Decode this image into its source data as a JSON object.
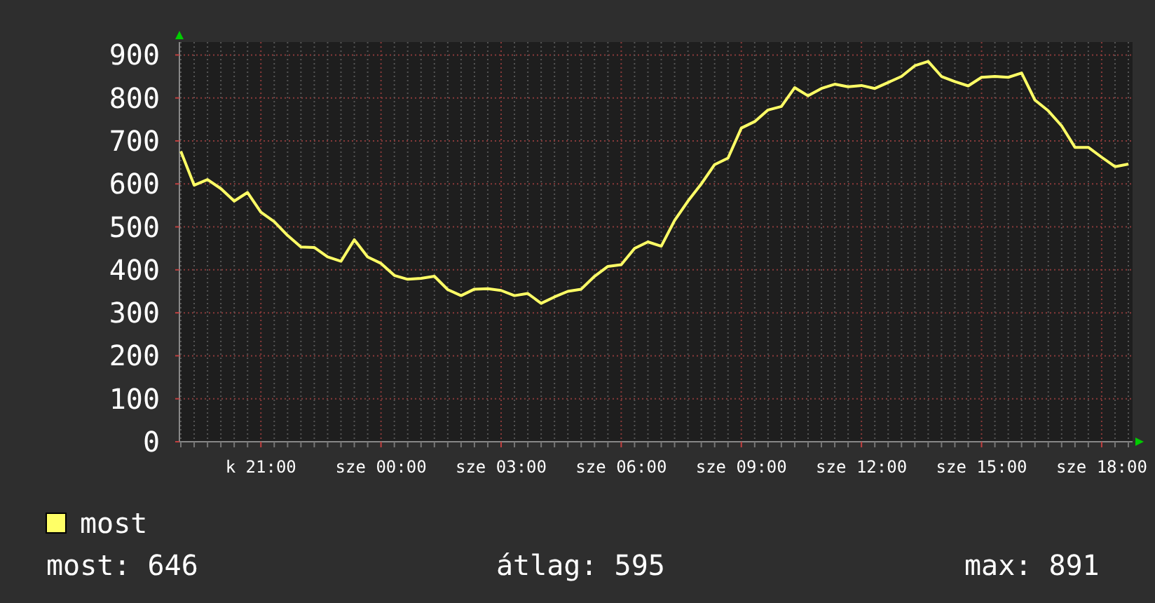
{
  "chart_data": {
    "type": "line",
    "categories": [
      null,
      null,
      null,
      null,
      null,
      null,
      "k 21:00",
      null,
      null,
      null,
      null,
      null,
      null,
      null,
      null,
      "sze 00:00",
      null,
      null,
      null,
      null,
      null,
      null,
      null,
      null,
      "sze 03:00",
      null,
      null,
      null,
      null,
      null,
      null,
      null,
      null,
      "sze 06:00",
      null,
      null,
      null,
      null,
      null,
      null,
      null,
      null,
      "sze 09:00",
      null,
      null,
      null,
      null,
      null,
      null,
      null,
      null,
      "sze 12:00",
      null,
      null,
      null,
      null,
      null,
      null,
      null,
      null,
      "sze 15:00",
      null,
      null,
      null,
      null,
      null,
      null,
      null,
      null,
      "sze 18:00",
      null,
      null
    ],
    "series": [
      {
        "name": "most",
        "color": "#ffff66",
        "values": [
          676,
          597,
          610,
          589,
          560,
          580,
          534,
          512,
          480,
          453,
          452,
          430,
          420,
          470,
          430,
          415,
          387,
          378,
          380,
          385,
          354,
          340,
          355,
          356,
          352,
          340,
          345,
          322,
          337,
          350,
          355,
          385,
          408,
          412,
          450,
          465,
          455,
          515,
          560,
          600,
          645,
          660,
          730,
          745,
          772,
          780,
          824,
          805,
          822,
          832,
          826,
          829,
          822,
          836,
          850,
          875,
          885,
          850,
          838,
          828,
          848,
          850,
          848,
          858,
          795,
          770,
          735,
          685,
          685,
          662,
          640,
          646
        ]
      }
    ],
    "ylim": [
      0,
      930
    ],
    "yticks": [
      0,
      100,
      200,
      300,
      400,
      500,
      600,
      700,
      800,
      900
    ],
    "grid": true,
    "legend": "bottom",
    "marker": "none",
    "line_style": "solid",
    "annotations": [
      "most: 646",
      "átlag: 595",
      "max: 891"
    ]
  }
}
